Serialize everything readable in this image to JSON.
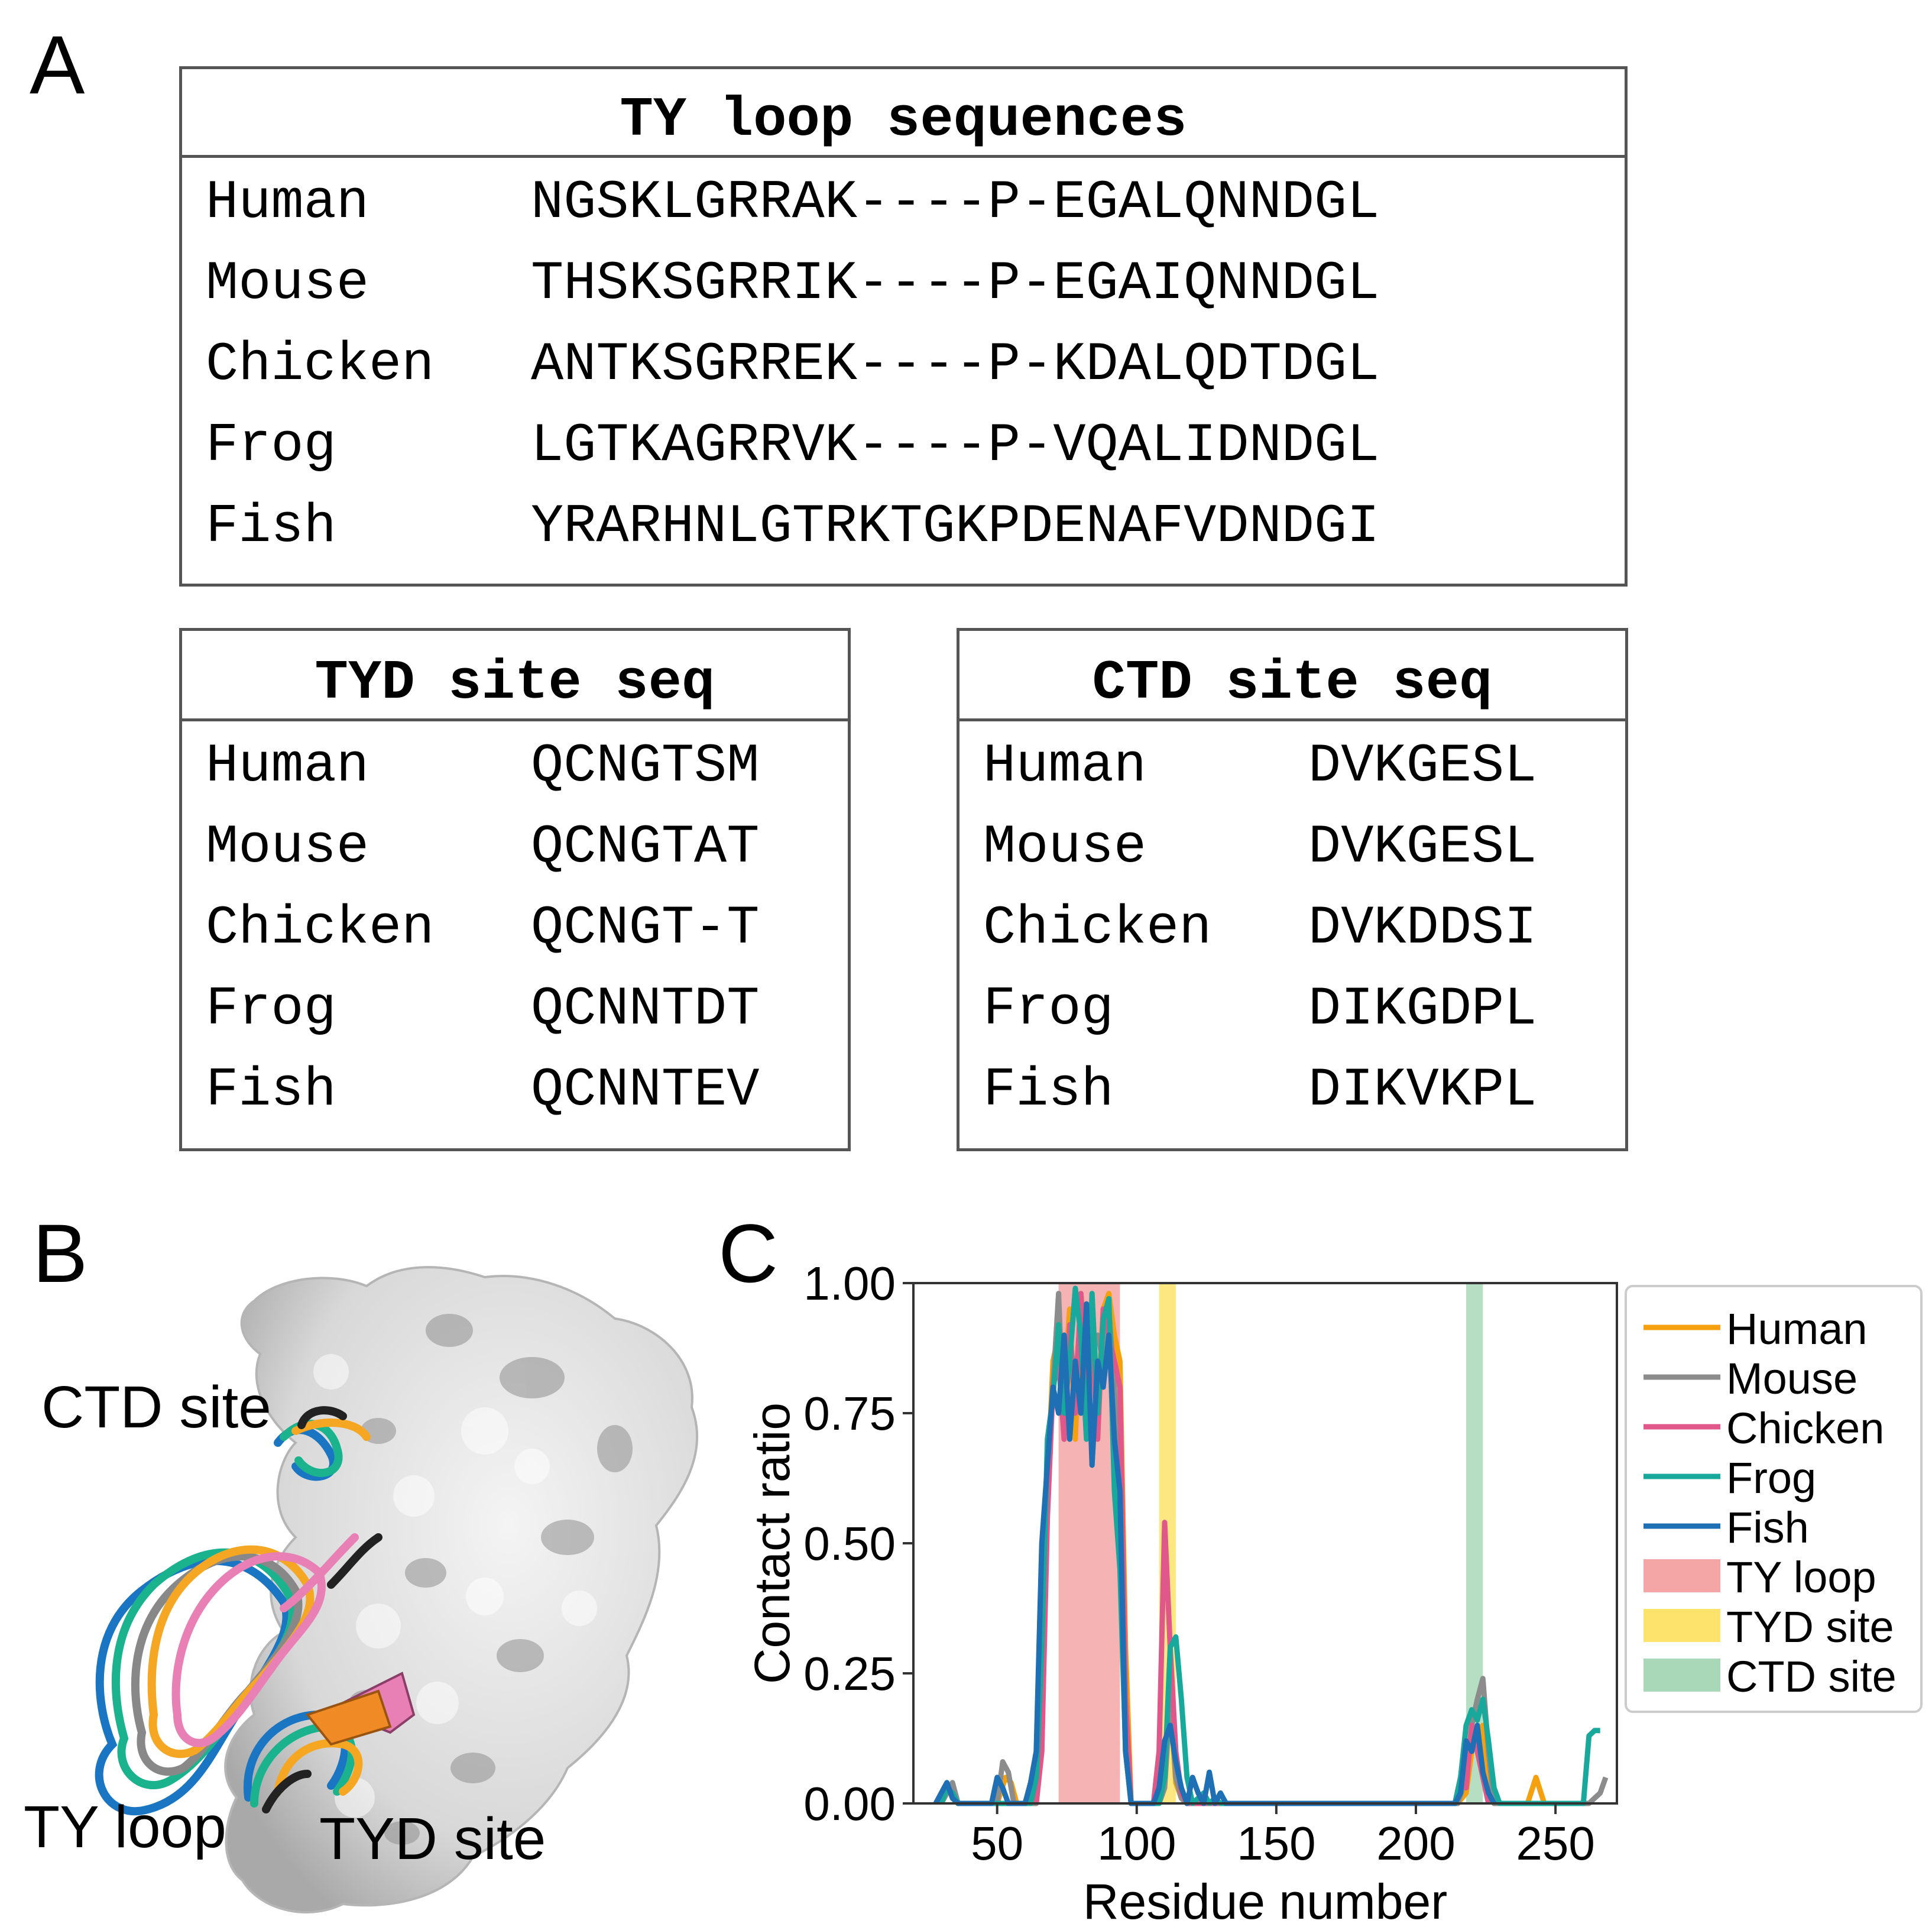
{
  "panels": {
    "a": "A",
    "b": "B",
    "c": "C"
  },
  "ty_box": {
    "title": "TY loop sequences",
    "rows": [
      {
        "species": "Human",
        "seq": "NGSKLGRRAK----P-EGALQNNDGL"
      },
      {
        "species": "Mouse",
        "seq": "THSKSGRRIK----P-EGAIQNNDGL"
      },
      {
        "species": "Chicken",
        "seq": "ANTKSGRREK----P-KDALQDTDGL"
      },
      {
        "species": "Frog",
        "seq": "LGTKAGRRVK----P-VQALIDNDGL"
      },
      {
        "species": "Fish",
        "seq": "YRARHNLGTRKTGKPDENAFVDNDGI"
      }
    ]
  },
  "tyd_box": {
    "title": "TYD site seq",
    "rows": [
      {
        "species": "Human",
        "seq": "QCNGTSM"
      },
      {
        "species": "Mouse",
        "seq": "QCNGTAT"
      },
      {
        "species": "Chicken",
        "seq": "QCNGT-T"
      },
      {
        "species": "Frog",
        "seq": "QCNNTDT"
      },
      {
        "species": "Fish",
        "seq": "QCNNTEV"
      }
    ]
  },
  "ctd_box": {
    "title": "CTD site seq",
    "rows": [
      {
        "species": "Human",
        "seq": "DVKGESL"
      },
      {
        "species": "Mouse",
        "seq": "DVKGESL"
      },
      {
        "species": "Chicken",
        "seq": "DVKDDSI"
      },
      {
        "species": "Frog",
        "seq": "DIKGDPL"
      },
      {
        "species": "Fish",
        "seq": "DIKVKPL"
      }
    ]
  },
  "structure": {
    "labels": {
      "ctd": "CTD site",
      "ty": "TY loop",
      "tyd": "TYD site"
    },
    "colors": {
      "surface": "#dcdcdc",
      "human": "#f5a623",
      "mouse": "#888888",
      "chicken": "#e87fb5",
      "frog": "#1bb38e",
      "fish": "#1a75c2"
    }
  },
  "chart_data": {
    "type": "line",
    "xlabel": "Residue number",
    "ylabel": "Contact ratio",
    "xlim": [
      20,
      272
    ],
    "ylim": [
      0,
      1.0
    ],
    "xticks": [
      "50",
      "100",
      "150",
      "200",
      "250"
    ],
    "xtick_values": [
      50,
      100,
      150,
      200,
      250
    ],
    "yticks": [
      "0.00",
      "0.25",
      "0.50",
      "0.75",
      "1.00"
    ],
    "ytick_values": [
      0,
      0.25,
      0.5,
      0.75,
      1.0
    ],
    "grid": false,
    "legend_position": "outside-right",
    "regions": [
      {
        "name": "TY loop",
        "x0": 72,
        "x1": 94,
        "color": "#f4a6a6"
      },
      {
        "name": "TYD site",
        "x0": 108,
        "x1": 114,
        "color": "#fde36b"
      },
      {
        "name": "CTD site",
        "x0": 218,
        "x1": 224,
        "color": "#a9d8b8"
      }
    ],
    "series": [
      {
        "name": "Human",
        "color": "#f5a00f",
        "x": [
          30,
          32,
          34,
          36,
          50,
          53,
          55,
          57,
          64,
          66,
          68,
          70,
          72,
          74,
          76,
          78,
          80,
          82,
          84,
          86,
          88,
          90,
          92,
          94,
          96,
          98,
          106,
          108,
          110,
          112,
          114,
          116,
          118,
          215,
          218,
          220,
          222,
          224,
          226,
          228,
          240,
          243,
          246
        ],
        "y": [
          0,
          0.02,
          0.03,
          0,
          0,
          0.05,
          0.04,
          0,
          0,
          0.1,
          0.6,
          0.85,
          0.9,
          0.8,
          0.95,
          0.7,
          0.98,
          0.85,
          0.92,
          0.75,
          0.95,
          0.98,
          0.9,
          0.85,
          0.3,
          0,
          0,
          0.05,
          0.08,
          0.2,
          0.04,
          0.01,
          0,
          0,
          0.02,
          0.1,
          0.12,
          0.15,
          0.05,
          0,
          0,
          0.05,
          0
        ]
      },
      {
        "name": "Mouse",
        "color": "#8c8c8c",
        "x": [
          30,
          32,
          34,
          36,
          50,
          52,
          54,
          56,
          64,
          66,
          68,
          70,
          72,
          74,
          76,
          78,
          80,
          82,
          84,
          86,
          88,
          90,
          92,
          94,
          96,
          98,
          108,
          110,
          112,
          114,
          116,
          118,
          215,
          218,
          220,
          222,
          224,
          226,
          228,
          262,
          264,
          266,
          268
        ],
        "y": [
          0,
          0.02,
          0.04,
          0,
          0,
          0.08,
          0.06,
          0,
          0,
          0.15,
          0.6,
          0.8,
          0.98,
          0.7,
          0.9,
          0.8,
          0.95,
          0.75,
          0.88,
          0.9,
          0.85,
          0.95,
          0.8,
          0.5,
          0.1,
          0,
          0,
          0.03,
          0.2,
          0.05,
          0.01,
          0,
          0,
          0.05,
          0.15,
          0.2,
          0.24,
          0.1,
          0,
          0,
          0.01,
          0.02,
          0.05
        ]
      },
      {
        "name": "Chicken",
        "color": "#e0578a",
        "x": [
          64,
          66,
          68,
          70,
          72,
          74,
          76,
          78,
          80,
          82,
          84,
          86,
          88,
          90,
          92,
          94,
          96,
          98,
          106,
          108,
          110,
          112,
          114,
          116,
          118,
          214,
          216,
          218,
          220,
          222,
          224,
          226
        ],
        "y": [
          0,
          0.1,
          0.55,
          0.8,
          0.85,
          0.7,
          0.92,
          0.75,
          0.98,
          0.8,
          0.9,
          0.7,
          0.95,
          0.9,
          0.85,
          0.8,
          0.2,
          0,
          0,
          0.1,
          0.54,
          0.3,
          0.1,
          0.02,
          0,
          0,
          0.05,
          0.03,
          0.15,
          0.1,
          0.05,
          0
        ]
      },
      {
        "name": "Frog",
        "color": "#19a89c",
        "x": [
          30,
          32,
          34,
          36,
          62,
          64,
          66,
          68,
          70,
          72,
          74,
          76,
          78,
          80,
          82,
          84,
          86,
          88,
          90,
          92,
          94,
          96,
          98,
          108,
          110,
          112,
          114,
          116,
          118,
          120,
          122,
          124,
          126,
          128,
          130,
          214,
          216,
          218,
          220,
          222,
          224,
          226,
          228,
          230,
          260,
          262,
          264,
          266
        ],
        "y": [
          0,
          0.03,
          0.02,
          0,
          0,
          0.05,
          0.3,
          0.7,
          0.78,
          0.92,
          0.75,
          0.85,
          0.99,
          0.9,
          0.7,
          0.98,
          0.75,
          0.93,
          0.97,
          0.6,
          0.45,
          0.1,
          0,
          0,
          0.05,
          0.3,
          0.32,
          0.2,
          0.05,
          0,
          0.01,
          0.02,
          0,
          0.01,
          0,
          0,
          0.05,
          0.15,
          0.18,
          0.16,
          0.2,
          0.12,
          0.03,
          0,
          0,
          0.13,
          0.14,
          0.14
        ]
      },
      {
        "name": "Fish",
        "color": "#1f6fb4",
        "x": [
          28,
          30,
          32,
          34,
          36,
          48,
          50,
          52,
          54,
          60,
          62,
          64,
          66,
          68,
          70,
          72,
          74,
          76,
          78,
          80,
          82,
          84,
          86,
          88,
          90,
          92,
          94,
          96,
          98,
          106,
          108,
          110,
          112,
          114,
          116,
          118,
          120,
          122,
          124,
          126,
          128,
          130,
          132,
          214,
          216,
          218,
          220,
          222,
          224,
          226,
          228
        ],
        "y": [
          0,
          0.02,
          0.04,
          0.01,
          0,
          0,
          0.05,
          0.03,
          0,
          0,
          0.04,
          0.1,
          0.5,
          0.65,
          0.8,
          0.75,
          0.9,
          0.7,
          0.85,
          0.75,
          0.96,
          0.65,
          0.85,
          0.8,
          0.9,
          0.7,
          0.6,
          0.1,
          0,
          0,
          0.03,
          0.12,
          0.15,
          0.08,
          0.03,
          0,
          0.05,
          0.02,
          0,
          0.06,
          0,
          0.02,
          0,
          0,
          0.02,
          0.12,
          0.1,
          0.15,
          0.06,
          0.02,
          0
        ]
      }
    ]
  }
}
